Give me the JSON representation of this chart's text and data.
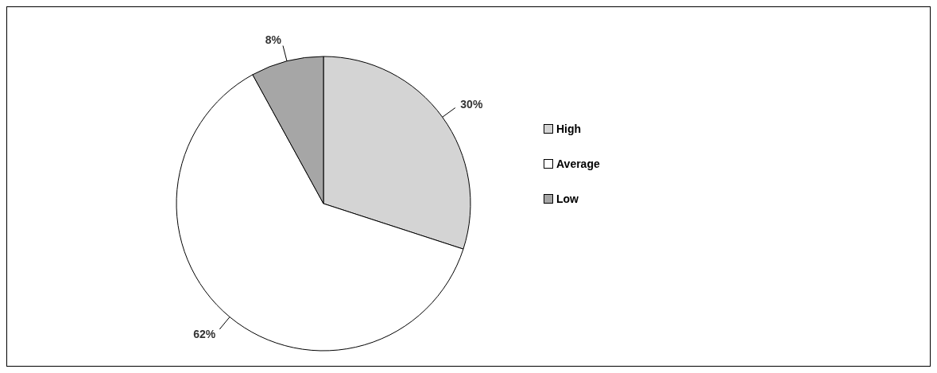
{
  "chart_data": {
    "type": "pie",
    "categories": [
      "High",
      "Average",
      "Low"
    ],
    "values": [
      30,
      62,
      8
    ],
    "colors": [
      "#d4d4d4",
      "#ffffff",
      "#a6a6a6"
    ],
    "value_labels": [
      "30%",
      "62%",
      "8%"
    ],
    "legend": "right"
  }
}
